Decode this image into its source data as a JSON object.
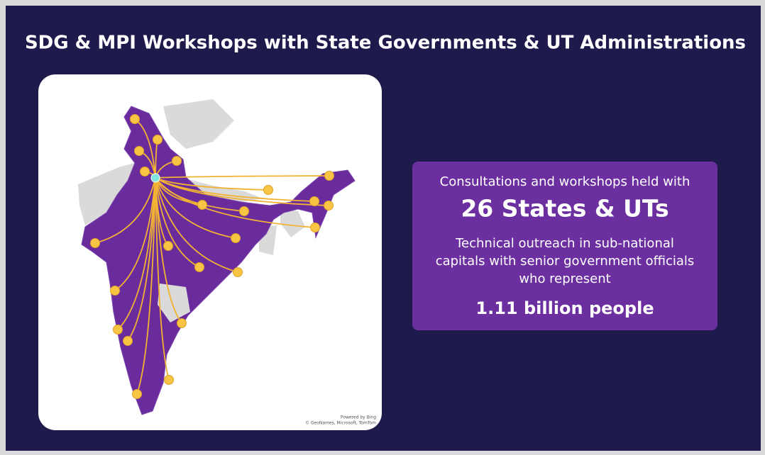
{
  "header": {
    "title": "SDG & MPI Workshops with State Governments & UT Administrations"
  },
  "map": {
    "credit": [
      "Powered by Bing",
      "© GeoNames, Microsoft, TomTom"
    ]
  },
  "panel": {
    "lead": "Consultations and workshops held with",
    "highlight": "26 States & UTs",
    "body": [
      "Technical outreach in sub-national",
      "capitals with senior government officials",
      "who represent"
    ],
    "stat": "1.11 billion people"
  }
}
